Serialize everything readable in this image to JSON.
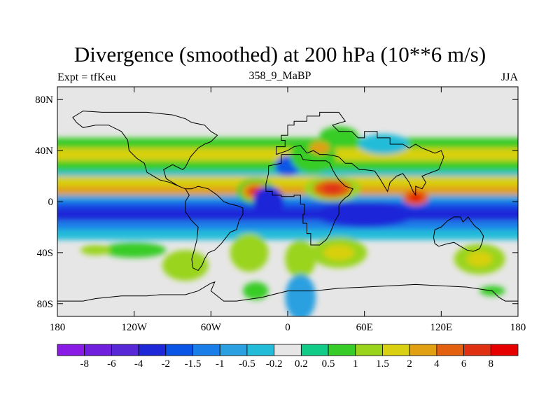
{
  "chart_data": {
    "type": "heatmap",
    "title": "Divergence (smoothed) at 200 hPa (10**6 m/s)",
    "left_label": "Expt = tfKeu",
    "center_label": "358_9_MaBP",
    "right_label": "JJA",
    "x_ticks": [
      "180",
      "120W",
      "60W",
      "0",
      "60E",
      "120E",
      "180"
    ],
    "y_ticks": [
      "80N",
      "40N",
      "0",
      "40S",
      "80S"
    ],
    "xlim": [
      -180,
      180
    ],
    "ylim": [
      -90,
      90
    ],
    "colorbar": {
      "labels": [
        "-8",
        "-6",
        "-4",
        "-2",
        "-1.5",
        "-1",
        "-0.5",
        "-0.2",
        "0.2",
        "0.5",
        "1",
        "1.5",
        "2",
        "4",
        "6",
        "8"
      ],
      "colors": [
        "#8a1ae6",
        "#7020dd",
        "#5828d6",
        "#1e28d8",
        "#0a55e6",
        "#1a7ee8",
        "#2aa0e0",
        "#22bcd8",
        "#e6e6e6",
        "#10cc88",
        "#38cc28",
        "#9ad41a",
        "#d8d010",
        "#e0a012",
        "#e2600e",
        "#e03012",
        "#e60000"
      ]
    },
    "bands": [
      {
        "lat": [
          50,
          42
        ],
        "value": 0.5
      },
      {
        "lat": [
          42,
          32
        ],
        "value": 1.5
      },
      {
        "lat": [
          32,
          24
        ],
        "value": 0.5
      },
      {
        "lat": [
          24,
          20
        ],
        "value": -0.5
      },
      {
        "lat": [
          20,
          12
        ],
        "value": 1.5
      },
      {
        "lat": [
          12,
          5
        ],
        "value": 2
      },
      {
        "lat": [
          5,
          0
        ],
        "value": -1
      },
      {
        "lat": [
          0,
          -5
        ],
        "value": -2
      },
      {
        "lat": [
          -5,
          -15
        ],
        "value": -4
      },
      {
        "lat": [
          -15,
          -22
        ],
        "value": -1.5
      },
      {
        "lat": [
          -22,
          -30
        ],
        "value": -0.5
      }
    ],
    "blobs": [
      {
        "lon": -25,
        "lat": 8,
        "rx": 15,
        "ry": 10,
        "value": 0.5
      },
      {
        "lon": -25,
        "lat": 8,
        "rx": 11,
        "ry": 7,
        "value": 2
      },
      {
        "lon": -25,
        "lat": 8,
        "rx": 7,
        "ry": 4,
        "value": 6
      },
      {
        "lon": 35,
        "lat": 10,
        "rx": 22,
        "ry": 10,
        "value": 1
      },
      {
        "lon": 35,
        "lat": 10,
        "rx": 15,
        "ry": 7,
        "value": 4
      },
      {
        "lon": 35,
        "lat": 10,
        "rx": 8,
        "ry": 4,
        "value": 6
      },
      {
        "lon": 100,
        "lat": 3,
        "rx": 10,
        "ry": 6,
        "value": 4
      },
      {
        "lon": 100,
        "lat": 3,
        "rx": 5,
        "ry": 3,
        "value": 8
      },
      {
        "lon": 0,
        "lat": 28,
        "rx": 10,
        "ry": 8,
        "value": -2
      },
      {
        "lon": 20,
        "lat": 36,
        "rx": 18,
        "ry": 14,
        "value": 0.5
      },
      {
        "lon": 25,
        "lat": 42,
        "rx": 8,
        "ry": 5,
        "value": 2
      },
      {
        "lon": -15,
        "lat": 0,
        "rx": 12,
        "ry": 12,
        "value": -4
      },
      {
        "lon": 60,
        "lat": -10,
        "rx": 40,
        "ry": 10,
        "value": -4
      },
      {
        "lon": -120,
        "lat": -38,
        "rx": 25,
        "ry": 6,
        "value": 0.5
      },
      {
        "lon": -150,
        "lat": -38,
        "rx": 12,
        "ry": 4,
        "value": 1
      },
      {
        "lon": -80,
        "lat": -50,
        "rx": 18,
        "ry": 12,
        "value": 1
      },
      {
        "lon": -30,
        "lat": -40,
        "rx": 15,
        "ry": 15,
        "value": 1
      },
      {
        "lon": 10,
        "lat": -45,
        "rx": 12,
        "ry": 15,
        "value": 1
      },
      {
        "lon": 40,
        "lat": -40,
        "rx": 22,
        "ry": 12,
        "value": 1
      },
      {
        "lon": 40,
        "lat": -40,
        "rx": 12,
        "ry": 6,
        "value": 1.5
      },
      {
        "lon": 150,
        "lat": -45,
        "rx": 20,
        "ry": 12,
        "value": 1
      },
      {
        "lon": 150,
        "lat": -45,
        "rx": 10,
        "ry": 6,
        "value": 1.5
      },
      {
        "lon": 10,
        "lat": -75,
        "rx": 12,
        "ry": 18,
        "value": -1
      },
      {
        "lon": -25,
        "lat": -70,
        "rx": 10,
        "ry": 7,
        "value": 0.5
      },
      {
        "lon": 40,
        "lat": 52,
        "rx": 15,
        "ry": 7,
        "value": 0.5
      },
      {
        "lon": 75,
        "lat": 45,
        "rx": 20,
        "ry": 8,
        "value": -0.5
      },
      {
        "lon": 160,
        "lat": -70,
        "rx": 10,
        "ry": 4,
        "value": 0.5
      }
    ]
  }
}
